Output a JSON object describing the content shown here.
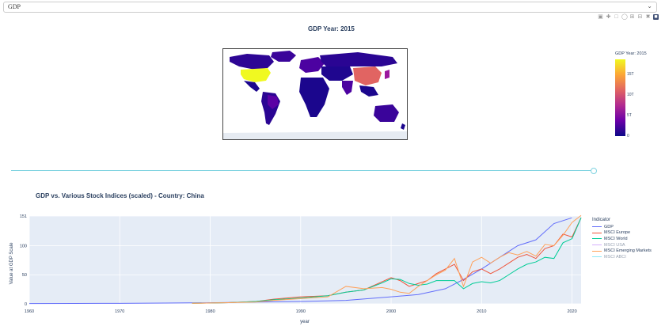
{
  "dropdown": {
    "value": "GDP"
  },
  "modebar": {
    "icons": [
      "camera-icon",
      "pan-icon",
      "box-select-icon",
      "lasso-icon",
      "zoom-in-icon",
      "zoom-out-icon",
      "autoscale-icon",
      "plotly-logo-icon"
    ]
  },
  "map": {
    "title": "GDP Year: 2015",
    "colorbar_title": "GDP Year: 2015",
    "colorbar_ticks": [
      "15T",
      "10T",
      "5T",
      "0"
    ],
    "colors": {
      "low": "#0d0887",
      "mid": "#e16462",
      "high": "#f0f921"
    }
  },
  "slider": {
    "value_fraction": 0.98
  },
  "line_chart": {
    "title": "GDP vs. Various Stock Indices (scaled) - Country: China",
    "legend_title": "Indicator",
    "legend_items": [
      {
        "label": "GDP",
        "color": "#636efa",
        "muted": false
      },
      {
        "label": "MSCI Europe",
        "color": "#ef553b",
        "muted": false
      },
      {
        "label": "MSCI World",
        "color": "#00cc96",
        "muted": false
      },
      {
        "label": "MSCI USA",
        "color": "#ab63fa",
        "muted": true
      },
      {
        "label": "MSCI Emerging Markets",
        "color": "#ffa15a",
        "muted": false
      },
      {
        "label": "MSCI ABCI",
        "color": "#19d3f3",
        "muted": true
      }
    ]
  },
  "chart_data": {
    "type": "line",
    "title": "GDP vs. Various Stock Indices (scaled) - Country: China",
    "xlabel": "year",
    "ylabel": "Value at GDP Scale",
    "xlim": [
      1960,
      2021
    ],
    "ylim": [
      0,
      151
    ],
    "x_ticks": [
      "1960",
      "1970",
      "1980",
      "1990",
      "2000",
      "2010",
      "2020"
    ],
    "y_ticks": [
      "0",
      "50",
      "100",
      "151"
    ],
    "series": [
      {
        "name": "GDP",
        "color": "#636efa",
        "x": [
          1960,
          1965,
          1970,
          1975,
          1980,
          1985,
          1990,
          1995,
          2000,
          2003,
          2006,
          2008,
          2010,
          2012,
          2014,
          2016,
          2018,
          2020
        ],
        "y": [
          0.5,
          0.7,
          0.9,
          1.3,
          1.9,
          3,
          4,
          6,
          12,
          16,
          26,
          42,
          60,
          80,
          100,
          110,
          138,
          148
        ]
      },
      {
        "name": "MSCI Europe",
        "color": "#ef553b",
        "x": [
          1978,
          1982,
          1985,
          1987,
          1990,
          1993,
          1995,
          1997,
          1999,
          2000,
          2001,
          2002,
          2003,
          2004,
          2005,
          2006,
          2007,
          2008,
          2009,
          2010,
          2011,
          2012,
          2013,
          2014,
          2015,
          2016,
          2017,
          2018,
          2019,
          2020,
          2021
        ],
        "y": [
          1,
          2,
          4,
          8,
          12,
          14,
          20,
          24,
          38,
          45,
          40,
          30,
          35,
          40,
          52,
          60,
          68,
          40,
          55,
          60,
          52,
          60,
          70,
          80,
          85,
          78,
          95,
          100,
          120,
          115,
          148
        ]
      },
      {
        "name": "MSCI World",
        "color": "#00cc96",
        "x": [
          1978,
          1982,
          1985,
          1987,
          1990,
          1993,
          1995,
          1997,
          1999,
          2000,
          2001,
          2002,
          2003,
          2004,
          2005,
          2006,
          2007,
          2008,
          2009,
          2010,
          2011,
          2012,
          2013,
          2014,
          2015,
          2016,
          2017,
          2018,
          2019,
          2020,
          2021
        ],
        "y": [
          1,
          2,
          4,
          7,
          10,
          14,
          20,
          24,
          36,
          43,
          42,
          35,
          32,
          34,
          40,
          40,
          40,
          26,
          35,
          38,
          36,
          40,
          50,
          60,
          68,
          72,
          80,
          78,
          105,
          112,
          148
        ]
      },
      {
        "name": "MSCI Emerging Markets",
        "color": "#ffa15a",
        "x": [
          1978,
          1982,
          1985,
          1987,
          1990,
          1993,
          1995,
          1997,
          1999,
          2000,
          2001,
          2002,
          2003,
          2004,
          2005,
          2006,
          2007,
          2008,
          2009,
          2010,
          2011,
          2012,
          2013,
          2014,
          2015,
          2016,
          2017,
          2018,
          2019,
          2020,
          2021
        ],
        "y": [
          1,
          2,
          3,
          6,
          9,
          12,
          30,
          26,
          28,
          25,
          20,
          18,
          30,
          40,
          50,
          58,
          78,
          30,
          72,
          80,
          70,
          80,
          88,
          84,
          90,
          82,
          102,
          100,
          118,
          140,
          152
        ]
      }
    ]
  }
}
